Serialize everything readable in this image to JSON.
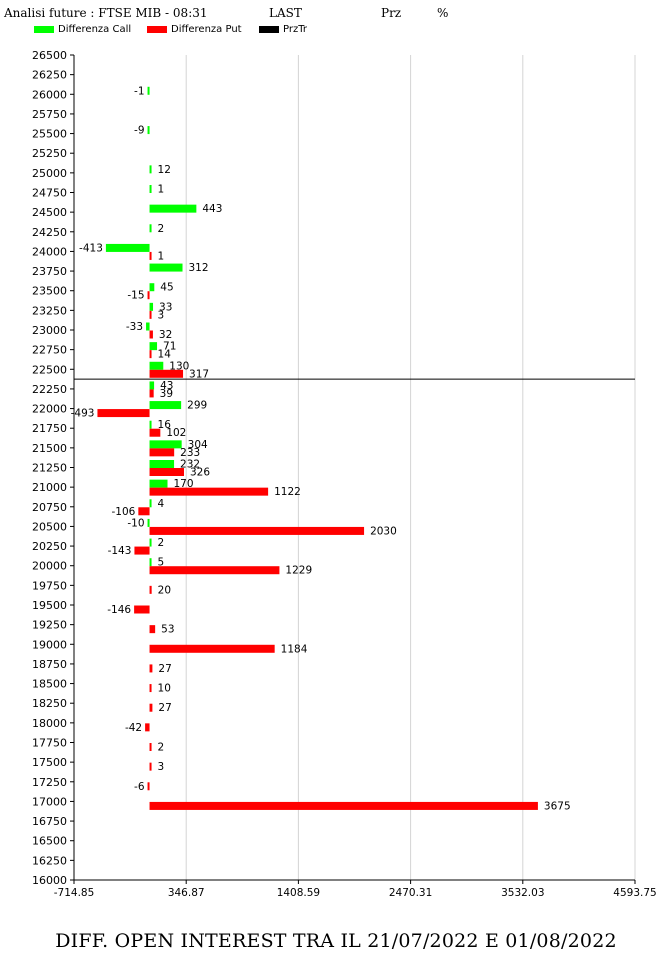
{
  "header": {
    "title": "Analisi future : FTSE MIB - 08:31",
    "last": "LAST",
    "prz": "Prz",
    "percent": "%"
  },
  "legend": [
    {
      "label": "Differenza Call",
      "color": "#00ff00"
    },
    {
      "label": "Differenza Put",
      "color": "#ff0000"
    },
    {
      "label": "PrzTr",
      "color": "#000000"
    }
  ],
  "footer": "DIFF. OPEN INTEREST TRA IL 21/07/2022 E 01/08/2022",
  "chart_data": {
    "type": "bar",
    "orientation": "horizontal",
    "y_ticks": [
      26500,
      26250,
      26000,
      25750,
      25500,
      25250,
      25000,
      24750,
      24500,
      24250,
      24000,
      23750,
      23500,
      23250,
      23000,
      22750,
      22500,
      22250,
      22000,
      21750,
      21500,
      21250,
      21000,
      20750,
      20500,
      20250,
      20000,
      19750,
      19500,
      19250,
      19000,
      18750,
      18500,
      18250,
      18000,
      17750,
      17500,
      17250,
      17000,
      16750,
      16500,
      16250,
      16000
    ],
    "x_ticks": [
      "-714.85",
      "346.87",
      "1408.59",
      "2470.31",
      "3532.03",
      "4593.75"
    ],
    "xlim": [
      -714.85,
      4593.75
    ],
    "ylim": [
      16000,
      26500
    ],
    "grid": "vertical",
    "price_line": 22375,
    "series": [
      {
        "name": "Differenza Call",
        "color": "#00ff00",
        "points": [
          {
            "strike": 26000,
            "value": -1
          },
          {
            "strike": 25500,
            "value": -9
          },
          {
            "strike": 25000,
            "value": 12
          },
          {
            "strike": 24750,
            "value": 1
          },
          {
            "strike": 24500,
            "value": 443
          },
          {
            "strike": 24250,
            "value": 2
          },
          {
            "strike": 24000,
            "value": -413
          },
          {
            "strike": 23750,
            "value": 312
          },
          {
            "strike": 23500,
            "value": 45
          },
          {
            "strike": 23250,
            "value": 33
          },
          {
            "strike": 23000,
            "value": -33
          },
          {
            "strike": 22750,
            "value": 71
          },
          {
            "strike": 22500,
            "value": 130
          },
          {
            "strike": 22250,
            "value": 43
          },
          {
            "strike": 22000,
            "value": 299
          },
          {
            "strike": 21750,
            "value": 16
          },
          {
            "strike": 21500,
            "value": 304
          },
          {
            "strike": 21250,
            "value": 232
          },
          {
            "strike": 21000,
            "value": 170
          },
          {
            "strike": 20750,
            "value": 4
          },
          {
            "strike": 20500,
            "value": -10
          },
          {
            "strike": 20250,
            "value": 2
          },
          {
            "strike": 20000,
            "value": 5
          }
        ]
      },
      {
        "name": "Differenza Put",
        "color": "#ff0000",
        "points": [
          {
            "strike": 24000,
            "value": 1
          },
          {
            "strike": 23500,
            "value": -15
          },
          {
            "strike": 23250,
            "value": 3
          },
          {
            "strike": 23000,
            "value": 32
          },
          {
            "strike": 22750,
            "value": 14
          },
          {
            "strike": 22500,
            "value": 317
          },
          {
            "strike": 22250,
            "value": 39
          },
          {
            "strike": 22000,
            "value": -493
          },
          {
            "strike": 21750,
            "value": 102
          },
          {
            "strike": 21500,
            "value": 233
          },
          {
            "strike": 21250,
            "value": 326
          },
          {
            "strike": 21000,
            "value": 1122
          },
          {
            "strike": 20750,
            "value": -106
          },
          {
            "strike": 20500,
            "value": 2030
          },
          {
            "strike": 20250,
            "value": -143
          },
          {
            "strike": 20000,
            "value": 1229
          },
          {
            "strike": 19750,
            "value": 20
          },
          {
            "strike": 19500,
            "value": -146
          },
          {
            "strike": 19250,
            "value": 53
          },
          {
            "strike": 19000,
            "value": 1184
          },
          {
            "strike": 18750,
            "value": 27
          },
          {
            "strike": 18500,
            "value": 10
          },
          {
            "strike": 18250,
            "value": 27
          },
          {
            "strike": 18000,
            "value": -42
          },
          {
            "strike": 17750,
            "value": 2
          },
          {
            "strike": 17500,
            "value": 3
          },
          {
            "strike": 17250,
            "value": -6
          },
          {
            "strike": 17000,
            "value": 3675
          }
        ]
      }
    ]
  }
}
